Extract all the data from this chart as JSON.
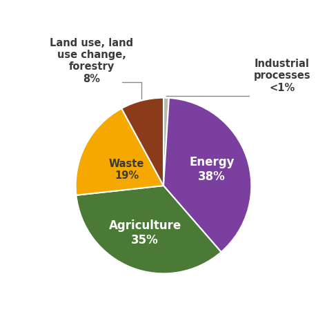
{
  "reordered_values": [
    1,
    38,
    35,
    19,
    8
  ],
  "reordered_colors": [
    "#C0B8B0",
    "#7B3FA0",
    "#4A7A35",
    "#F5A800",
    "#8B3A1A"
  ],
  "edge_color": "white",
  "edge_linewidth": 1.5,
  "energy_label": "Energy\n38%",
  "agriculture_label": "Agriculture\n35%",
  "waste_label": "Waste\n19%",
  "land_use_label": "Land use, land\nuse change,\nforestry\n8%",
  "industrial_label": "Industrial\nprocesses\n<1%",
  "internal_label_color": "white",
  "external_label_color": "#3a3a3a",
  "fontsize_internal": 12,
  "fontsize_external": 10.5,
  "connector_color": "#888888",
  "bg_color": "#ffffff",
  "startangle": 90
}
